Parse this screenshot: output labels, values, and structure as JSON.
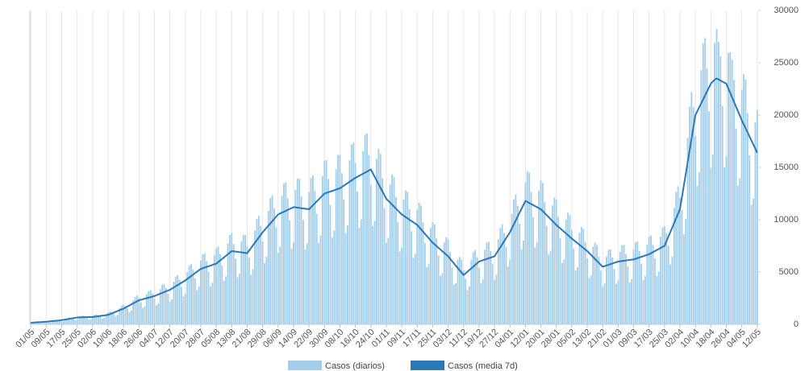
{
  "chart_data": {
    "type": "bar",
    "categories": [
      "01/05",
      null,
      null,
      null,
      null,
      null,
      null,
      null,
      "09/05",
      null,
      null,
      null,
      null,
      null,
      null,
      null,
      "17/05",
      null,
      null,
      null,
      null,
      null,
      null,
      null,
      "25/05",
      null,
      null,
      null,
      null,
      null,
      null,
      null,
      "02/06",
      null,
      null,
      null,
      null,
      null,
      null,
      null,
      "10/06",
      null,
      null,
      null,
      null,
      null,
      null,
      null,
      "18/06",
      null,
      null,
      null,
      null,
      null,
      null,
      null,
      "26/06",
      null,
      null,
      null,
      null,
      null,
      null,
      null,
      "04/07",
      null,
      null,
      null,
      null,
      null,
      null,
      null,
      "12/07",
      null,
      null,
      null,
      null,
      null,
      null,
      null,
      "20/07",
      null,
      null,
      null,
      null,
      null,
      null,
      null,
      "28/07",
      null,
      null,
      null,
      null,
      null,
      null,
      null,
      "05/08",
      null,
      null,
      null,
      null,
      null,
      null,
      null,
      "13/08",
      null,
      null,
      null,
      null,
      null,
      null,
      null,
      "21/08",
      null,
      null,
      null,
      null,
      null,
      null,
      null,
      "29/08",
      null,
      null,
      null,
      null,
      null,
      null,
      null,
      "06/09",
      null,
      null,
      null,
      null,
      null,
      null,
      null,
      "14/09",
      null,
      null,
      null,
      null,
      null,
      null,
      null,
      "22/09",
      null,
      null,
      null,
      null,
      null,
      null,
      null,
      "30/09",
      null,
      null,
      null,
      null,
      null,
      null,
      null,
      "08/10",
      null,
      null,
      null,
      null,
      null,
      null,
      null,
      "16/10",
      null,
      null,
      null,
      null,
      null,
      null,
      null,
      "24/10",
      null,
      null,
      null,
      null,
      null,
      null,
      null,
      "01/11",
      null,
      null,
      null,
      null,
      null,
      null,
      null,
      "09/11",
      null,
      null,
      null,
      null,
      null,
      null,
      null,
      "17/11",
      null,
      null,
      null,
      null,
      null,
      null,
      null,
      "25/11",
      null,
      null,
      null,
      null,
      null,
      null,
      null,
      "03/12",
      null,
      null,
      null,
      null,
      null,
      null,
      null,
      "11/12",
      null,
      null,
      null,
      null,
      null,
      null,
      null,
      "19/12",
      null,
      null,
      null,
      null,
      null,
      null,
      null,
      "27/12",
      null,
      null,
      null,
      null,
      null,
      null,
      null,
      "04/01",
      null,
      null,
      null,
      null,
      null,
      null,
      null,
      "12/01",
      null,
      null,
      null,
      null,
      null,
      null,
      null,
      "20/01",
      null,
      null,
      null,
      null,
      null,
      null,
      null,
      "28/01",
      null,
      null,
      null,
      null,
      null,
      null,
      null,
      "05/02",
      null,
      null,
      null,
      null,
      null,
      null,
      null,
      "13/02",
      null,
      null,
      null,
      null,
      null,
      null,
      null,
      "21/02",
      null,
      null,
      null,
      null,
      null,
      null,
      null,
      "01/03",
      null,
      null,
      null,
      null,
      null,
      null,
      null,
      "09/03",
      null,
      null,
      null,
      null,
      null,
      null,
      null,
      "17/03",
      null,
      null,
      null,
      null,
      null,
      null,
      null,
      "25/03",
      null,
      null,
      null,
      null,
      null,
      null,
      null,
      "02/04",
      null,
      null,
      null,
      null,
      null,
      null,
      null,
      "10/04",
      null,
      null,
      null,
      null,
      null,
      null,
      null,
      "18/04",
      null,
      null,
      null,
      null,
      null,
      null,
      null,
      "26/04",
      null,
      null,
      null,
      null,
      null,
      null,
      null,
      "04/05",
      null,
      null,
      null,
      null,
      null,
      null,
      null,
      "12/05"
    ],
    "series": [
      {
        "name": "Casos (diarios)",
        "type": "bar",
        "color": "#a3cde8",
        "values": [
          170,
          140,
          120,
          130,
          230,
          260,
          290,
          260,
          230,
          180,
          200,
          360,
          410,
          430,
          400,
          340,
          260,
          300,
          530,
          610,
          660,
          620,
          530,
          400,
          460,
          760,
          830,
          840,
          750,
          610,
          450,
          480,
          810,
          910,
          940,
          860,
          720,
          540,
          600,
          1010,
          1130,
          1230,
          1160,
          1020,
          780,
          900,
          1550,
          1790,
          1880,
          1760,
          1530,
          1170,
          1330,
          2300,
          2630,
          2750,
          2530,
          2120,
          1560,
          1720,
          2880,
          3190,
          3250,
          2920,
          2430,
          1810,
          2000,
          3370,
          3750,
          3850,
          3470,
          2910,
          2150,
          2390,
          4060,
          4550,
          4690,
          4250,
          3580,
          2660,
          2940,
          4990,
          5600,
          5760,
          5230,
          4400,
          3270,
          3610,
          6100,
          6700,
          6790,
          6040,
          5000,
          3650,
          3980,
          6600,
          7250,
          7440,
          6710,
          5630,
          4160,
          4590,
          7710,
          8560,
          8750,
          7680,
          6260,
          4500,
          4830,
          7910,
          8560,
          8540,
          7480,
          6350,
          4750,
          5290,
          8970,
          10060,
          10380,
          9410,
          7920,
          5860,
          6460,
          10860,
          12060,
          12330,
          11090,
          9260,
          6830,
          7410,
          12280,
          13450,
          13560,
          12030,
          9930,
          7220,
          7840,
          12860,
          13940,
          13910,
          12210,
          9970,
          7180,
          7720,
          12650,
          13990,
          14230,
          12720,
          10580,
          7760,
          8490,
          14160,
          15630,
          15700,
          13890,
          11420,
          8290,
          8970,
          14810,
          16180,
          16250,
          14440,
          11930,
          8700,
          9450,
          15680,
          17190,
          17350,
          15400,
          12690,
          9230,
          10010,
          16560,
          18130,
          18250,
          16170,
          13320,
          9390,
          9870,
          15810,
          16750,
          16310,
          13970,
          11120,
          7800,
          8270,
          13370,
          14300,
          14060,
          12170,
          9790,
          6950,
          7350,
          11940,
          12810,
          12660,
          11000,
          8890,
          6340,
          6740,
          10930,
          11610,
          11350,
          9750,
          7790,
          5490,
          5760,
          9210,
          9750,
          9550,
          8230,
          6580,
          4650,
          4890,
          7850,
          8330,
          8130,
          6910,
          5450,
          3790,
          3920,
          6190,
          6440,
          6160,
          5170,
          4370,
          3270,
          3630,
          6150,
          6890,
          7100,
          6420,
          5400,
          3940,
          4290,
          7120,
          7810,
          7890,
          7020,
          5800,
          4230,
          4750,
          8140,
          9200,
          9560,
          8730,
          7410,
          5530,
          6160,
          10560,
          11940,
          12410,
          11330,
          9610,
          7180,
          8000,
          13570,
          14630,
          14500,
          12650,
          10260,
          7350,
          7840,
          12770,
          13750,
          13510,
          11690,
          9400,
          6660,
          7040,
          11360,
          12110,
          11880,
          10270,
          8260,
          5860,
          6200,
          9990,
          10660,
          10450,
          9020,
          7250,
          5140,
          5430,
          8740,
          9310,
          9130,
          7870,
          6300,
          4430,
          4640,
          7410,
          7810,
          7580,
          6470,
          5120,
          3580,
          3890,
          6470,
          7110,
          7190,
          6390,
          5290,
          3860,
          4200,
          6930,
          7560,
          7600,
          6710,
          5520,
          4000,
          4330,
          7130,
          7830,
          7910,
          7030,
          5810,
          4230,
          4610,
          7640,
          8380,
          8500,
          7590,
          6300,
          4620,
          5040,
          8400,
          9250,
          9380,
          8730,
          7540,
          5730,
          6480,
          11140,
          12660,
          13200,
          12100,
          10920,
          8610,
          10070,
          17830,
          20790,
          22190,
          20770,
          18000,
          13250,
          14530,
          24300,
          26880,
          27350,
          24480,
          20370,
          14950,
          16240,
          26910,
          28200,
          27000,
          25630,
          20880,
          15020,
          16100,
          25940,
          26000,
          25300,
          23380,
          18730,
          13250,
          13960,
          22430,
          23890,
          23410,
          20170,
          16160,
          11410,
          12030,
          19310,
          20500
        ]
      },
      {
        "name": "Casos (media 7d)",
        "type": "line",
        "color": "#2a78b5",
        "values": [
          150,
          160,
          180,
          190,
          200,
          210,
          230,
          240,
          250,
          270,
          290,
          310,
          330,
          340,
          360,
          380,
          400,
          430,
          460,
          490,
          530,
          560,
          590,
          620,
          650,
          660,
          660,
          670,
          680,
          680,
          690,
          690,
          700,
          730,
          750,
          780,
          800,
          830,
          850,
          880,
          900,
          980,
          1050,
          1130,
          1200,
          1280,
          1350,
          1430,
          1500,
          1600,
          1700,
          1800,
          1900,
          2000,
          2100,
          2200,
          2300,
          2350,
          2400,
          2450,
          2500,
          2550,
          2600,
          2650,
          2700,
          2780,
          2850,
          2930,
          3000,
          3080,
          3150,
          3230,
          3300,
          3410,
          3530,
          3640,
          3750,
          3860,
          3980,
          4090,
          4200,
          4340,
          4480,
          4610,
          4750,
          4890,
          5030,
          5160,
          5300,
          5360,
          5430,
          5490,
          5550,
          5610,
          5680,
          5740,
          5800,
          5950,
          6100,
          6250,
          6400,
          6550,
          6700,
          6850,
          7000,
          6980,
          6950,
          6930,
          6900,
          6880,
          6850,
          6830,
          6800,
          7050,
          7300,
          7550,
          7800,
          8050,
          8300,
          8550,
          8800,
          9010,
          9230,
          9440,
          9650,
          9860,
          10080,
          10290,
          10500,
          10590,
          10680,
          10760,
          10850,
          10940,
          11030,
          11110,
          11200,
          11180,
          11150,
          11130,
          11100,
          11080,
          11050,
          11030,
          11000,
          11190,
          11380,
          11560,
          11750,
          11940,
          12130,
          12310,
          12500,
          12560,
          12630,
          12690,
          12750,
          12810,
          12880,
          12940,
          13000,
          13130,
          13250,
          13380,
          13500,
          13630,
          13750,
          13880,
          14000,
          14100,
          14200,
          14300,
          14400,
          14500,
          14600,
          14700,
          14800,
          14450,
          14100,
          13750,
          13400,
          13050,
          12700,
          12350,
          12000,
          11810,
          11630,
          11440,
          11250,
          11060,
          10880,
          10690,
          10500,
          10380,
          10250,
          10130,
          10000,
          9880,
          9750,
          9630,
          9500,
          9290,
          9080,
          8860,
          8650,
          8440,
          8230,
          8010,
          7800,
          7640,
          7480,
          7310,
          7150,
          6990,
          6830,
          6660,
          6500,
          6280,
          6050,
          5830,
          5600,
          5380,
          5150,
          4930,
          4700,
          4860,
          5030,
          5190,
          5350,
          5510,
          5680,
          5840,
          6000,
          6060,
          6130,
          6190,
          6250,
          6310,
          6380,
          6440,
          6500,
          6790,
          7080,
          7360,
          7650,
          7940,
          8230,
          8510,
          8800,
          9180,
          9550,
          9930,
          10300,
          10680,
          11050,
          11430,
          11800,
          11700,
          11600,
          11500,
          11400,
          11300,
          11200,
          11100,
          11000,
          10810,
          10630,
          10440,
          10250,
          10060,
          9880,
          9690,
          9500,
          9340,
          9180,
          9010,
          8850,
          8690,
          8530,
          8360,
          8200,
          8050,
          7900,
          7750,
          7600,
          7450,
          7300,
          7150,
          7000,
          6810,
          6630,
          6440,
          6250,
          6060,
          5880,
          5690,
          5500,
          5560,
          5630,
          5690,
          5750,
          5810,
          5880,
          5940,
          6000,
          6030,
          6050,
          6080,
          6100,
          6130,
          6150,
          6180,
          6200,
          6260,
          6330,
          6390,
          6450,
          6510,
          6580,
          6640,
          6700,
          6800,
          6900,
          7000,
          7100,
          7200,
          7300,
          7400,
          7500,
          7940,
          8380,
          8810,
          9250,
          9690,
          10130,
          10560,
          11000,
          12130,
          13250,
          14380,
          15500,
          16630,
          17750,
          18880,
          20000,
          20380,
          20750,
          21130,
          21500,
          21880,
          22250,
          22630,
          23000,
          23200,
          23400,
          23500,
          23400,
          23300,
          23200,
          23100,
          23000,
          22560,
          22130,
          21690,
          21250,
          20810,
          20380,
          19940,
          19500,
          19110,
          18730,
          18340,
          17950,
          17560,
          17180,
          16790,
          16400
        ]
      }
    ],
    "ylim": [
      0,
      30000
    ],
    "yticks": [
      0,
      5000,
      10000,
      15000,
      20000,
      25000,
      30000
    ],
    "y_axis_side": "right",
    "xgrid": true,
    "legend": "bottom"
  }
}
